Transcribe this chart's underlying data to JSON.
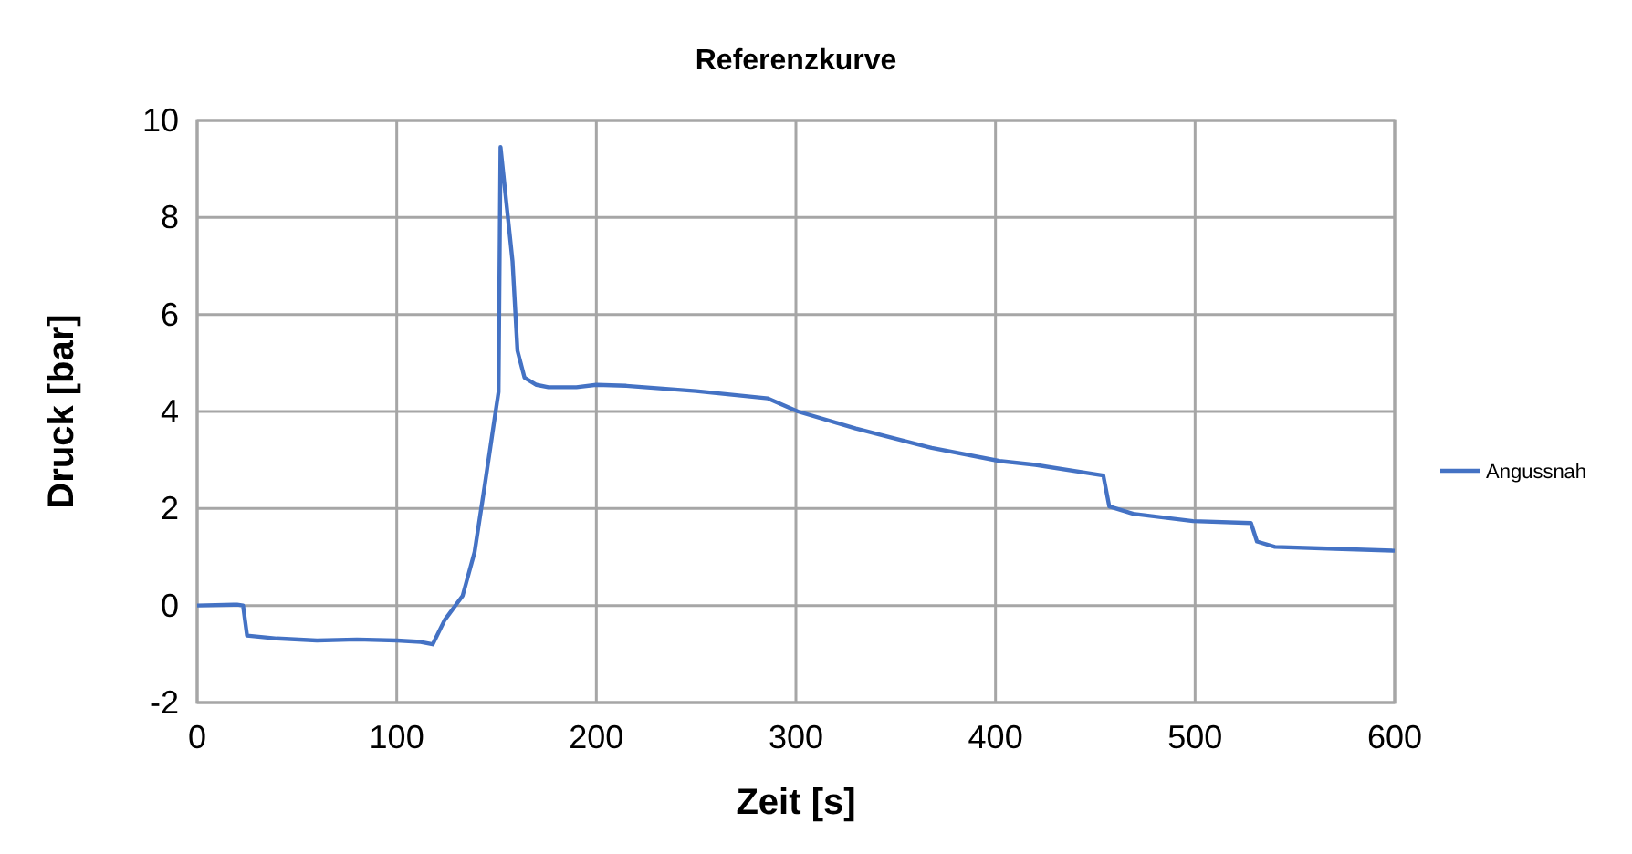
{
  "chart_data": {
    "type": "line",
    "title": "Referenzkurve",
    "xlabel": "Zeit   [s]",
    "ylabel": "Druck   [bar]",
    "xlim": [
      0,
      600
    ],
    "xticks": [
      0,
      100,
      200,
      300,
      400,
      500,
      600
    ],
    "ylim": [
      -2,
      10
    ],
    "yticks": [
      -2,
      0,
      2,
      4,
      6,
      8,
      10
    ],
    "grid": true,
    "legend": "right",
    "marker": "none",
    "line_style": "solid",
    "series": [
      {
        "name": "Angussnah",
        "color": "#4472c4",
        "x": [
          0,
          20,
          23,
          25,
          40,
          60,
          80,
          100,
          112,
          118,
          124,
          133,
          139,
          144,
          149,
          151,
          152,
          158,
          160.5,
          164,
          170,
          176,
          190,
          200,
          215,
          250,
          286,
          301,
          330,
          368,
          402,
          420,
          454,
          457,
          469,
          499,
          528,
          531,
          540,
          570,
          600
        ],
        "values": [
          0,
          0.02,
          0,
          -0.62,
          -0.68,
          -0.72,
          -0.7,
          -0.72,
          -0.75,
          -0.8,
          -0.3,
          0.2,
          1.1,
          2.45,
          3.85,
          4.4,
          9.45,
          7.1,
          5.25,
          4.7,
          4.55,
          4.5,
          4.5,
          4.55,
          4.53,
          4.42,
          4.27,
          4.0,
          3.65,
          3.25,
          2.98,
          2.9,
          2.68,
          2.04,
          1.89,
          1.74,
          1.7,
          1.32,
          1.21,
          1.17,
          1.13
        ]
      }
    ]
  }
}
